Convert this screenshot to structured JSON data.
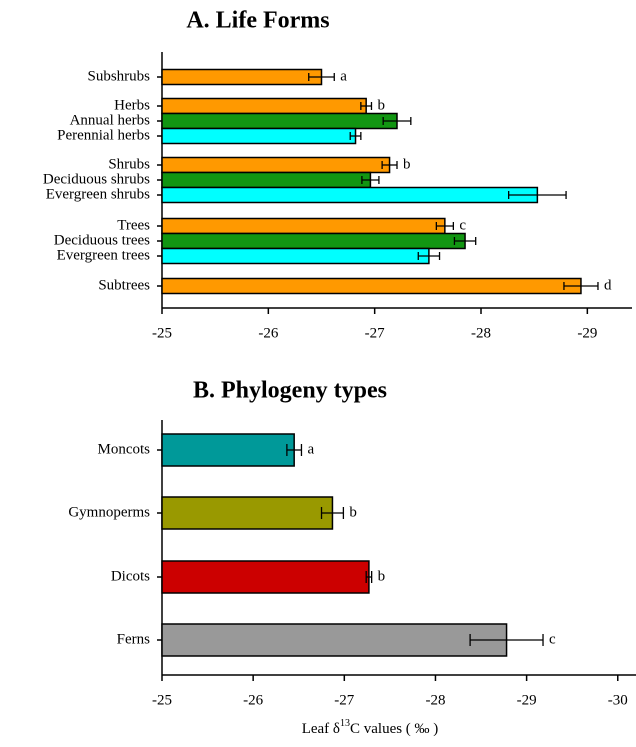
{
  "chart_data": [
    {
      "type": "hbar",
      "title": "A. Life Forms",
      "categories": [
        "Subshrubs",
        "Herbs",
        "Annual herbs",
        "Perennial herbs",
        "Shrubs",
        "Deciduous shrubs",
        "Evergreen shrubs",
        "Trees",
        "Deciduous trees",
        "Evergreen trees",
        "Subtrees"
      ],
      "values": [
        -26.5,
        -26.92,
        -27.21,
        -26.82,
        -27.14,
        -26.96,
        -28.53,
        -27.66,
        -27.85,
        -27.51,
        -28.94
      ],
      "errors": [
        0.12,
        0.05,
        0.13,
        0.05,
        0.07,
        0.08,
        0.27,
        0.08,
        0.1,
        0.1,
        0.16
      ],
      "letters": [
        "a",
        "b",
        null,
        null,
        "b",
        null,
        null,
        "c",
        null,
        null,
        "d"
      ],
      "colors": [
        "#ff9900",
        "#ff9900",
        "#129612",
        "#00ffff",
        "#ff9900",
        "#129612",
        "#00ffff",
        "#ff9900",
        "#129612",
        "#00ffff",
        "#ff9900"
      ],
      "xlim": [
        -25,
        -29.42
      ],
      "xticks": [
        -25,
        -26,
        -27,
        -28,
        -29
      ]
    },
    {
      "type": "hbar",
      "title": "B. Phylogeny types",
      "categories": [
        "Moncots",
        "Gymnoperms",
        "Dicots",
        "Ferns"
      ],
      "values": [
        -26.45,
        -26.87,
        -27.27,
        -28.78
      ],
      "errors": [
        0.08,
        0.12,
        0.03,
        0.4
      ],
      "letters": [
        "a",
        "b",
        "b",
        "c"
      ],
      "colors": [
        "#009999",
        "#999900",
        "#cc0000",
        "#999999"
      ],
      "xlim": [
        -25,
        -30.2
      ],
      "xticks": [
        -25,
        -26,
        -27,
        -28,
        -29,
        -30
      ],
      "xlabel": [
        "Leaf  δ",
        "13",
        "C values ( ‰ )"
      ]
    }
  ]
}
